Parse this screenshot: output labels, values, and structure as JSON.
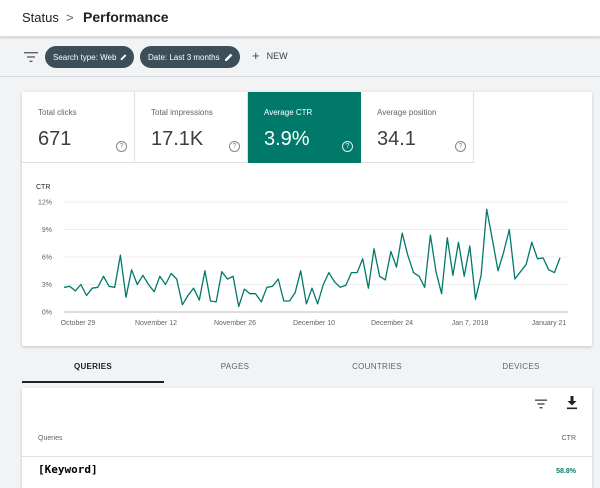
{
  "breadcrumb": {
    "parent": "Status",
    "separator": ">",
    "title": "Performance"
  },
  "filters": {
    "search_type": "Search type: Web",
    "date": "Date: Last 3 months",
    "new_label": "NEW"
  },
  "metrics": [
    {
      "label": "Total clicks",
      "value": "671",
      "active": false
    },
    {
      "label": "Total impressions",
      "value": "17.1K",
      "active": false
    },
    {
      "label": "Average CTR",
      "value": "3.9%",
      "active": true
    },
    {
      "label": "Average position",
      "value": "34.1",
      "active": false
    }
  ],
  "help_glyph": "?",
  "chart_data": {
    "type": "line",
    "ylabel": "CTR",
    "y_ticks": [
      "0%",
      "3%",
      "6%",
      "9%",
      "12%"
    ],
    "ylim": [
      0,
      12
    ],
    "x_ticks": [
      "October 29",
      "November 12",
      "November 26",
      "December 10",
      "December 24",
      "Jan 7, 2018",
      "January 21"
    ],
    "color": "#00796b",
    "grid": true,
    "series": [
      {
        "values": [
          2.7,
          2.8,
          2.3,
          3.0,
          1.8,
          2.6,
          2.7,
          3.9,
          2.8,
          2.7,
          6.2,
          1.6,
          4.6,
          3.0,
          4.0,
          3.0,
          2.2,
          3.9,
          3.0,
          4.2,
          3.6,
          0.8,
          1.8,
          2.6,
          1.3,
          4.5,
          1.2,
          1.1,
          4.4,
          3.6,
          3.9,
          0.6,
          2.5,
          2.0,
          2.0,
          1.1,
          2.7,
          2.8,
          3.6,
          1.2,
          1.2,
          2.1,
          4.5,
          0.9,
          2.6,
          0.9,
          3.0,
          4.3,
          3.3,
          2.7,
          2.9,
          4.3,
          4.3,
          5.8,
          2.6,
          6.9,
          3.9,
          3.5,
          6.6,
          4.9,
          8.6,
          6.2,
          4.3,
          3.9,
          2.7,
          8.4,
          4.4,
          2.0,
          8.1,
          4.0,
          7.6,
          3.9,
          7.2,
          1.4,
          4.0,
          11.2,
          7.9,
          4.5,
          6.5,
          9.0,
          3.6,
          4.4,
          5.2,
          7.6,
          5.8,
          5.9,
          4.6,
          4.3,
          5.9
        ]
      }
    ]
  },
  "tabs": [
    {
      "label": "QUERIES",
      "active": true
    },
    {
      "label": "PAGES",
      "active": false
    },
    {
      "label": "COUNTRIES",
      "active": false
    },
    {
      "label": "DEVICES",
      "active": false
    }
  ],
  "table": {
    "columns": [
      "Queries",
      "CTR"
    ],
    "rows": [
      {
        "query": "[Keyword]",
        "ctr": "58.8%"
      }
    ]
  }
}
